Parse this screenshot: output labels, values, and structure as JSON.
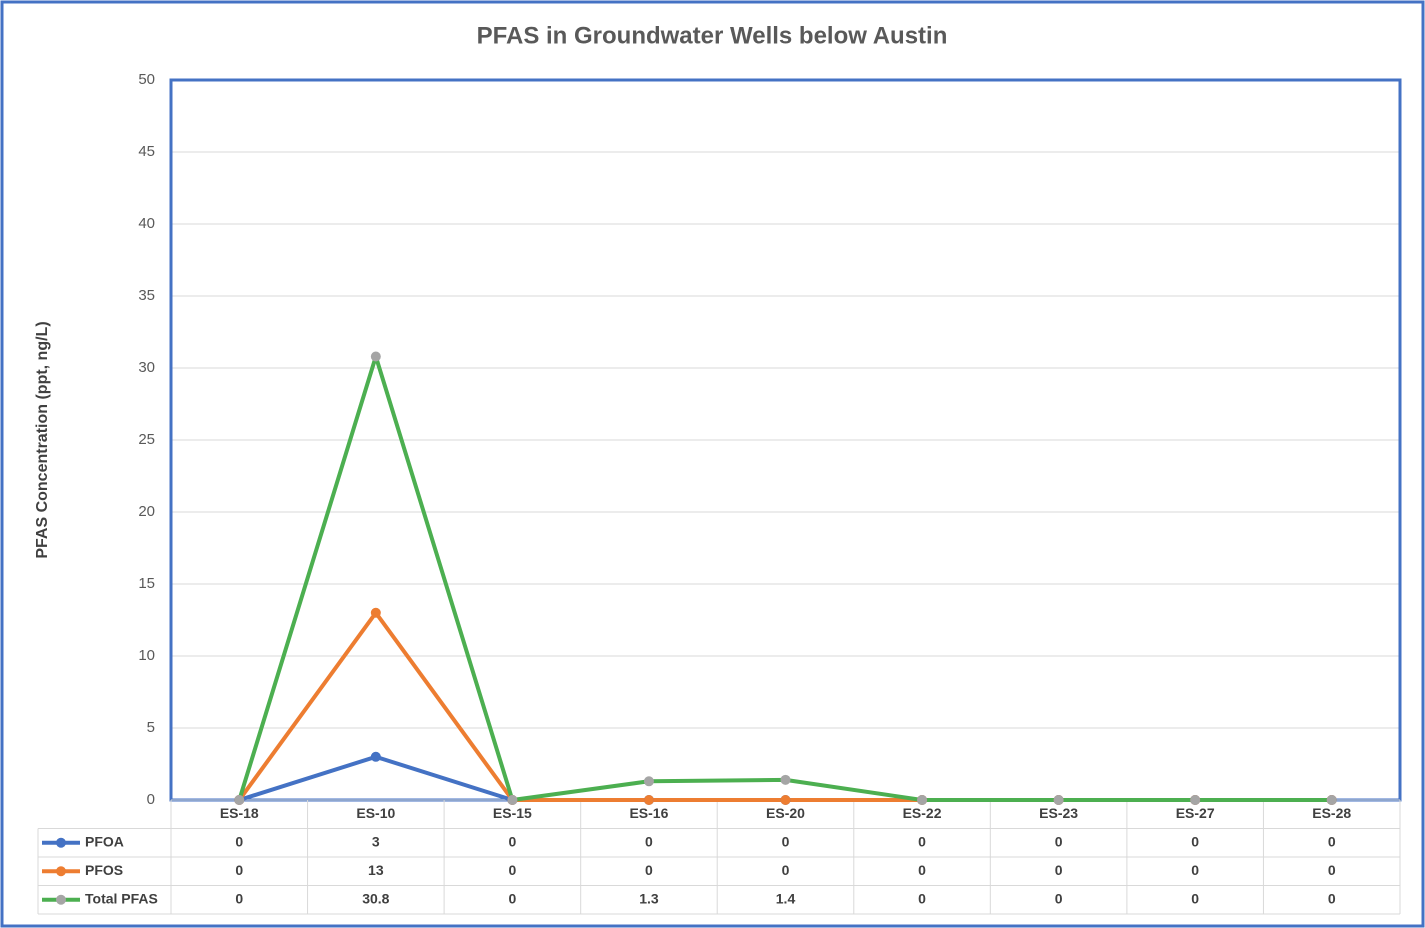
{
  "chart_data": {
    "type": "line",
    "title": "PFAS in Groundwater Wells below Austin",
    "y_label": "PFAS Concentration (ppt, ng/L)",
    "categories": [
      "ES-18",
      "ES-10",
      "ES-15",
      "ES-16",
      "ES-20",
      "ES-22",
      "ES-23",
      "ES-27",
      "ES-28"
    ],
    "series": [
      {
        "name": "PFOA",
        "color": "#4472c4",
        "marker_color": "#4472c4",
        "values": [
          0,
          3,
          0,
          0,
          0,
          0,
          0,
          0,
          0
        ]
      },
      {
        "name": "PFOS",
        "color": "#ed7d31",
        "marker_color": "#ed7d31",
        "values": [
          0,
          13,
          0,
          0,
          0,
          0,
          0,
          0,
          0
        ]
      },
      {
        "name": "Total PFAS",
        "color": "#4caf50",
        "marker_color": "#a5a5a5",
        "values": [
          0,
          30.8,
          0,
          1.3,
          1.4,
          0,
          0,
          0,
          0
        ]
      }
    ],
    "ylim": [
      0,
      50
    ],
    "yticks": [
      0,
      5,
      10,
      15,
      20,
      25,
      30,
      35,
      40,
      45,
      50
    ],
    "grid": true,
    "data_table": true
  }
}
